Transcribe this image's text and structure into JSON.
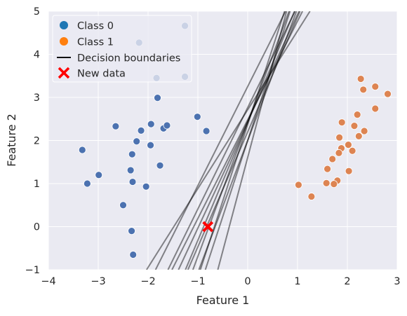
{
  "chart_data": {
    "type": "scatter",
    "xlabel": "Feature 1",
    "ylabel": "Feature 2",
    "xlim": [
      -4,
      3
    ],
    "ylim": [
      -1,
      5
    ],
    "xticks": [
      -4,
      -3,
      -2,
      -1,
      0,
      1,
      2,
      3
    ],
    "yticks": [
      -1,
      0,
      1,
      2,
      3,
      4,
      5
    ],
    "xtick_labels": [
      "−4",
      "−3",
      "−2",
      "−1",
      "0",
      "1",
      "2",
      "3"
    ],
    "ytick_labels": [
      "−1",
      "0",
      "1",
      "2",
      "3",
      "4",
      "5"
    ],
    "grid": true,
    "legend_position": "top-left",
    "style": {
      "background": "#eaeaf2",
      "grid_color": "#ffffff",
      "class0_color": "#4c72b0",
      "class0_legend_color": "#1f77b4",
      "class1_color": "#dd8452",
      "class1_legend_color": "#ff7f0e",
      "boundary_color": "#000000",
      "new_data_color": "#ff0000"
    },
    "legend": [
      {
        "label": "Class 0",
        "kind": "class0"
      },
      {
        "label": "Class 1",
        "kind": "class1"
      },
      {
        "label": "Decision boundaries",
        "kind": "line"
      },
      {
        "label": "New data",
        "kind": "cross"
      }
    ],
    "series": [
      {
        "name": "Class 0",
        "points": [
          [
            -2.18,
            4.27
          ],
          [
            -1.26,
            4.66
          ],
          [
            -1.83,
            3.45
          ],
          [
            -1.26,
            3.48
          ],
          [
            -1.81,
            2.99
          ],
          [
            -2.65,
            2.33
          ],
          [
            -1.01,
            2.55
          ],
          [
            -0.83,
            2.22
          ],
          [
            -1.94,
            2.38
          ],
          [
            -1.69,
            2.28
          ],
          [
            -1.62,
            2.35
          ],
          [
            -2.14,
            2.23
          ],
          [
            -2.23,
            1.98
          ],
          [
            -1.95,
            1.89
          ],
          [
            -3.32,
            1.78
          ],
          [
            -2.32,
            1.68
          ],
          [
            -1.76,
            1.42
          ],
          [
            -2.35,
            1.31
          ],
          [
            -2.99,
            1.2
          ],
          [
            -2.31,
            1.04
          ],
          [
            -3.22,
            1.0
          ],
          [
            -2.04,
            0.93
          ],
          [
            -2.5,
            0.5
          ],
          [
            -2.33,
            -0.1
          ],
          [
            -2.3,
            -0.65
          ]
        ]
      },
      {
        "name": "Class 1",
        "points": [
          [
            2.27,
            3.43
          ],
          [
            2.32,
            3.18
          ],
          [
            2.56,
            3.25
          ],
          [
            2.81,
            3.08
          ],
          [
            2.56,
            2.74
          ],
          [
            2.2,
            2.6
          ],
          [
            1.89,
            2.42
          ],
          [
            2.14,
            2.34
          ],
          [
            2.34,
            2.22
          ],
          [
            2.23,
            2.1
          ],
          [
            1.84,
            2.07
          ],
          [
            2.02,
            1.9
          ],
          [
            1.88,
            1.82
          ],
          [
            1.83,
            1.71
          ],
          [
            2.1,
            1.76
          ],
          [
            1.7,
            1.57
          ],
          [
            1.6,
            1.34
          ],
          [
            2.03,
            1.29
          ],
          [
            1.8,
            1.07
          ],
          [
            1.58,
            1.01
          ],
          [
            1.73,
            0.99
          ],
          [
            1.02,
            0.97
          ],
          [
            1.28,
            0.7
          ]
        ]
      }
    ],
    "new_data": [
      -0.8,
      0.0
    ],
    "decision_boundaries": [
      [
        [
          -2.03,
          -1
        ],
        [
          1.25,
          5
        ]
      ],
      [
        [
          -1.85,
          -1
        ],
        [
          0.76,
          5
        ]
      ],
      [
        [
          -1.6,
          -1
        ],
        [
          0.95,
          5
        ]
      ],
      [
        [
          -1.52,
          -1
        ],
        [
          1.1,
          5
        ]
      ],
      [
        [
          -1.39,
          -1
        ],
        [
          1.03,
          5
        ]
      ],
      [
        [
          -1.25,
          -1
        ],
        [
          0.94,
          5
        ]
      ],
      [
        [
          -1.2,
          -1
        ],
        [
          1.05,
          5
        ]
      ],
      [
        [
          -1.1,
          -1
        ],
        [
          0.83,
          5
        ]
      ],
      [
        [
          -0.98,
          -1
        ],
        [
          0.98,
          5
        ]
      ],
      [
        [
          -0.95,
          -1
        ],
        [
          0.74,
          5
        ]
      ],
      [
        [
          -0.85,
          -1
        ],
        [
          0.85,
          5
        ]
      ],
      [
        [
          -0.6,
          -1
        ],
        [
          0.78,
          5
        ]
      ]
    ]
  }
}
